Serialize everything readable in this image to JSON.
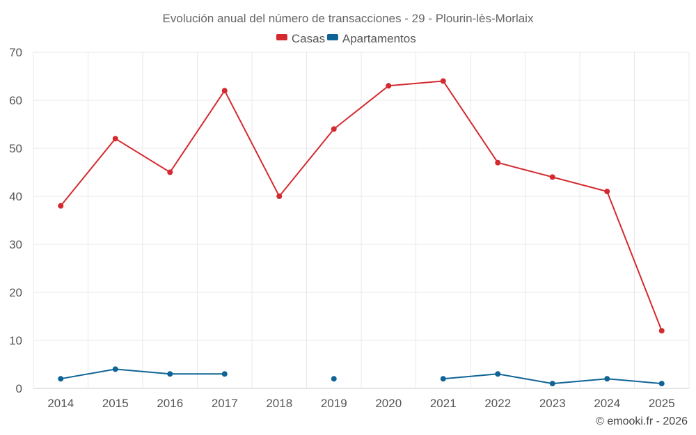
{
  "chart_data": {
    "type": "line",
    "title": "Evolución anual del número de transacciones - 29 - Plourin-lès-Morlaix",
    "categories": [
      "2014",
      "2015",
      "2016",
      "2017",
      "2018",
      "2019",
      "2020",
      "2021",
      "2022",
      "2023",
      "2024",
      "2025"
    ],
    "ylim": [
      0,
      70
    ],
    "yticks": [
      0,
      10,
      20,
      30,
      40,
      50,
      60,
      70
    ],
    "grid": true,
    "legend_position": "top-center",
    "series": [
      {
        "name": "Casas",
        "color": "#d42a2f",
        "values": [
          38,
          52,
          45,
          62,
          40,
          54,
          63,
          64,
          47,
          44,
          41,
          12
        ]
      },
      {
        "name": "Apartamentos",
        "color": "#0f6496",
        "values": [
          2,
          4,
          3,
          3,
          null,
          2,
          null,
          2,
          3,
          1,
          2,
          1
        ]
      }
    ],
    "xlabel": "",
    "ylabel": ""
  },
  "credit": "© emooki.fr - 2026"
}
